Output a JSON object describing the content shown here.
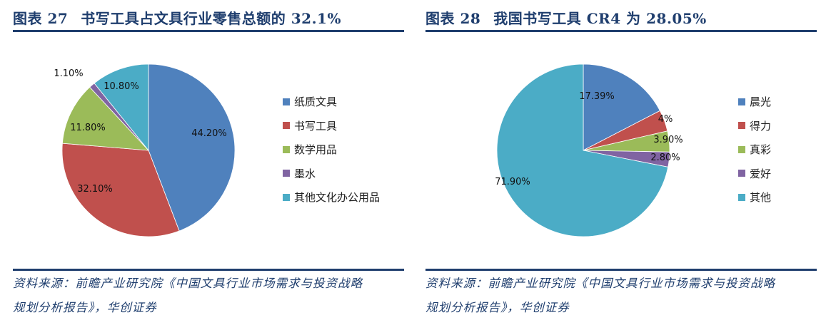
{
  "panels": [
    {
      "title_num": "图表 27",
      "title_text": "书写工具占文具行业零售总额的 32.1%",
      "source_line1": "资料来源：前瞻产业研究院《中国文具行业市场需求与投资战略",
      "source_line2": "规划分析报告》，华创证券",
      "legend": [
        {
          "label": "纸质文具",
          "color": "#4f81bd"
        },
        {
          "label": "书写工具",
          "color": "#c0504d"
        },
        {
          "label": "数学用品",
          "color": "#9bbb59"
        },
        {
          "label": "墨水",
          "color": "#8064a2"
        },
        {
          "label": "其他文化办公用品",
          "color": "#4bacc6"
        }
      ],
      "labels": [
        "44.20%",
        "32.10%",
        "11.80%",
        "1.10%",
        "10.80%"
      ]
    },
    {
      "title_num": "图表 28",
      "title_text": "我国书写工具 CR4 为 28.05%",
      "source_line1": "资料来源：前瞻产业研究院《中国文具行业市场需求与投资战略",
      "source_line2": "规划分析报告》，华创证券",
      "legend": [
        {
          "label": "晨光",
          "color": "#4f81bd"
        },
        {
          "label": "得力",
          "color": "#c0504d"
        },
        {
          "label": "真彩",
          "color": "#9bbb59"
        },
        {
          "label": "爱好",
          "color": "#8064a2"
        },
        {
          "label": "其他",
          "color": "#4bacc6"
        }
      ],
      "labels": [
        "17.39%",
        "4%",
        "3.90%",
        "2.80%",
        "71.90%"
      ]
    }
  ],
  "chart_data": [
    {
      "type": "pie",
      "title": "图表 27 书写工具占文具行业零售总额的 32.1%",
      "categories": [
        "纸质文具",
        "书写工具",
        "数学用品",
        "墨水",
        "其他文化办公用品"
      ],
      "values": [
        44.2,
        32.1,
        11.8,
        1.1,
        10.8
      ],
      "value_labels": [
        "44.20%",
        "32.10%",
        "11.80%",
        "1.10%",
        "10.80%"
      ],
      "legend_position": "right",
      "source": "资料来源：前瞻产业研究院《中国文具行业市场需求与投资战略规划分析报告》，华创证券"
    },
    {
      "type": "pie",
      "title": "图表 28 我国书写工具 CR4 为 28.05%",
      "categories": [
        "晨光",
        "得力",
        "真彩",
        "爱好",
        "其他"
      ],
      "values": [
        17.39,
        4,
        3.9,
        2.8,
        71.9
      ],
      "value_labels": [
        "17.39%",
        "4%",
        "3.90%",
        "2.80%",
        "71.90%"
      ],
      "legend_position": "right",
      "source": "资料来源：前瞻产业研究院《中国文具行业市场需求与投资战略规划分析报告》，华创证券"
    }
  ]
}
